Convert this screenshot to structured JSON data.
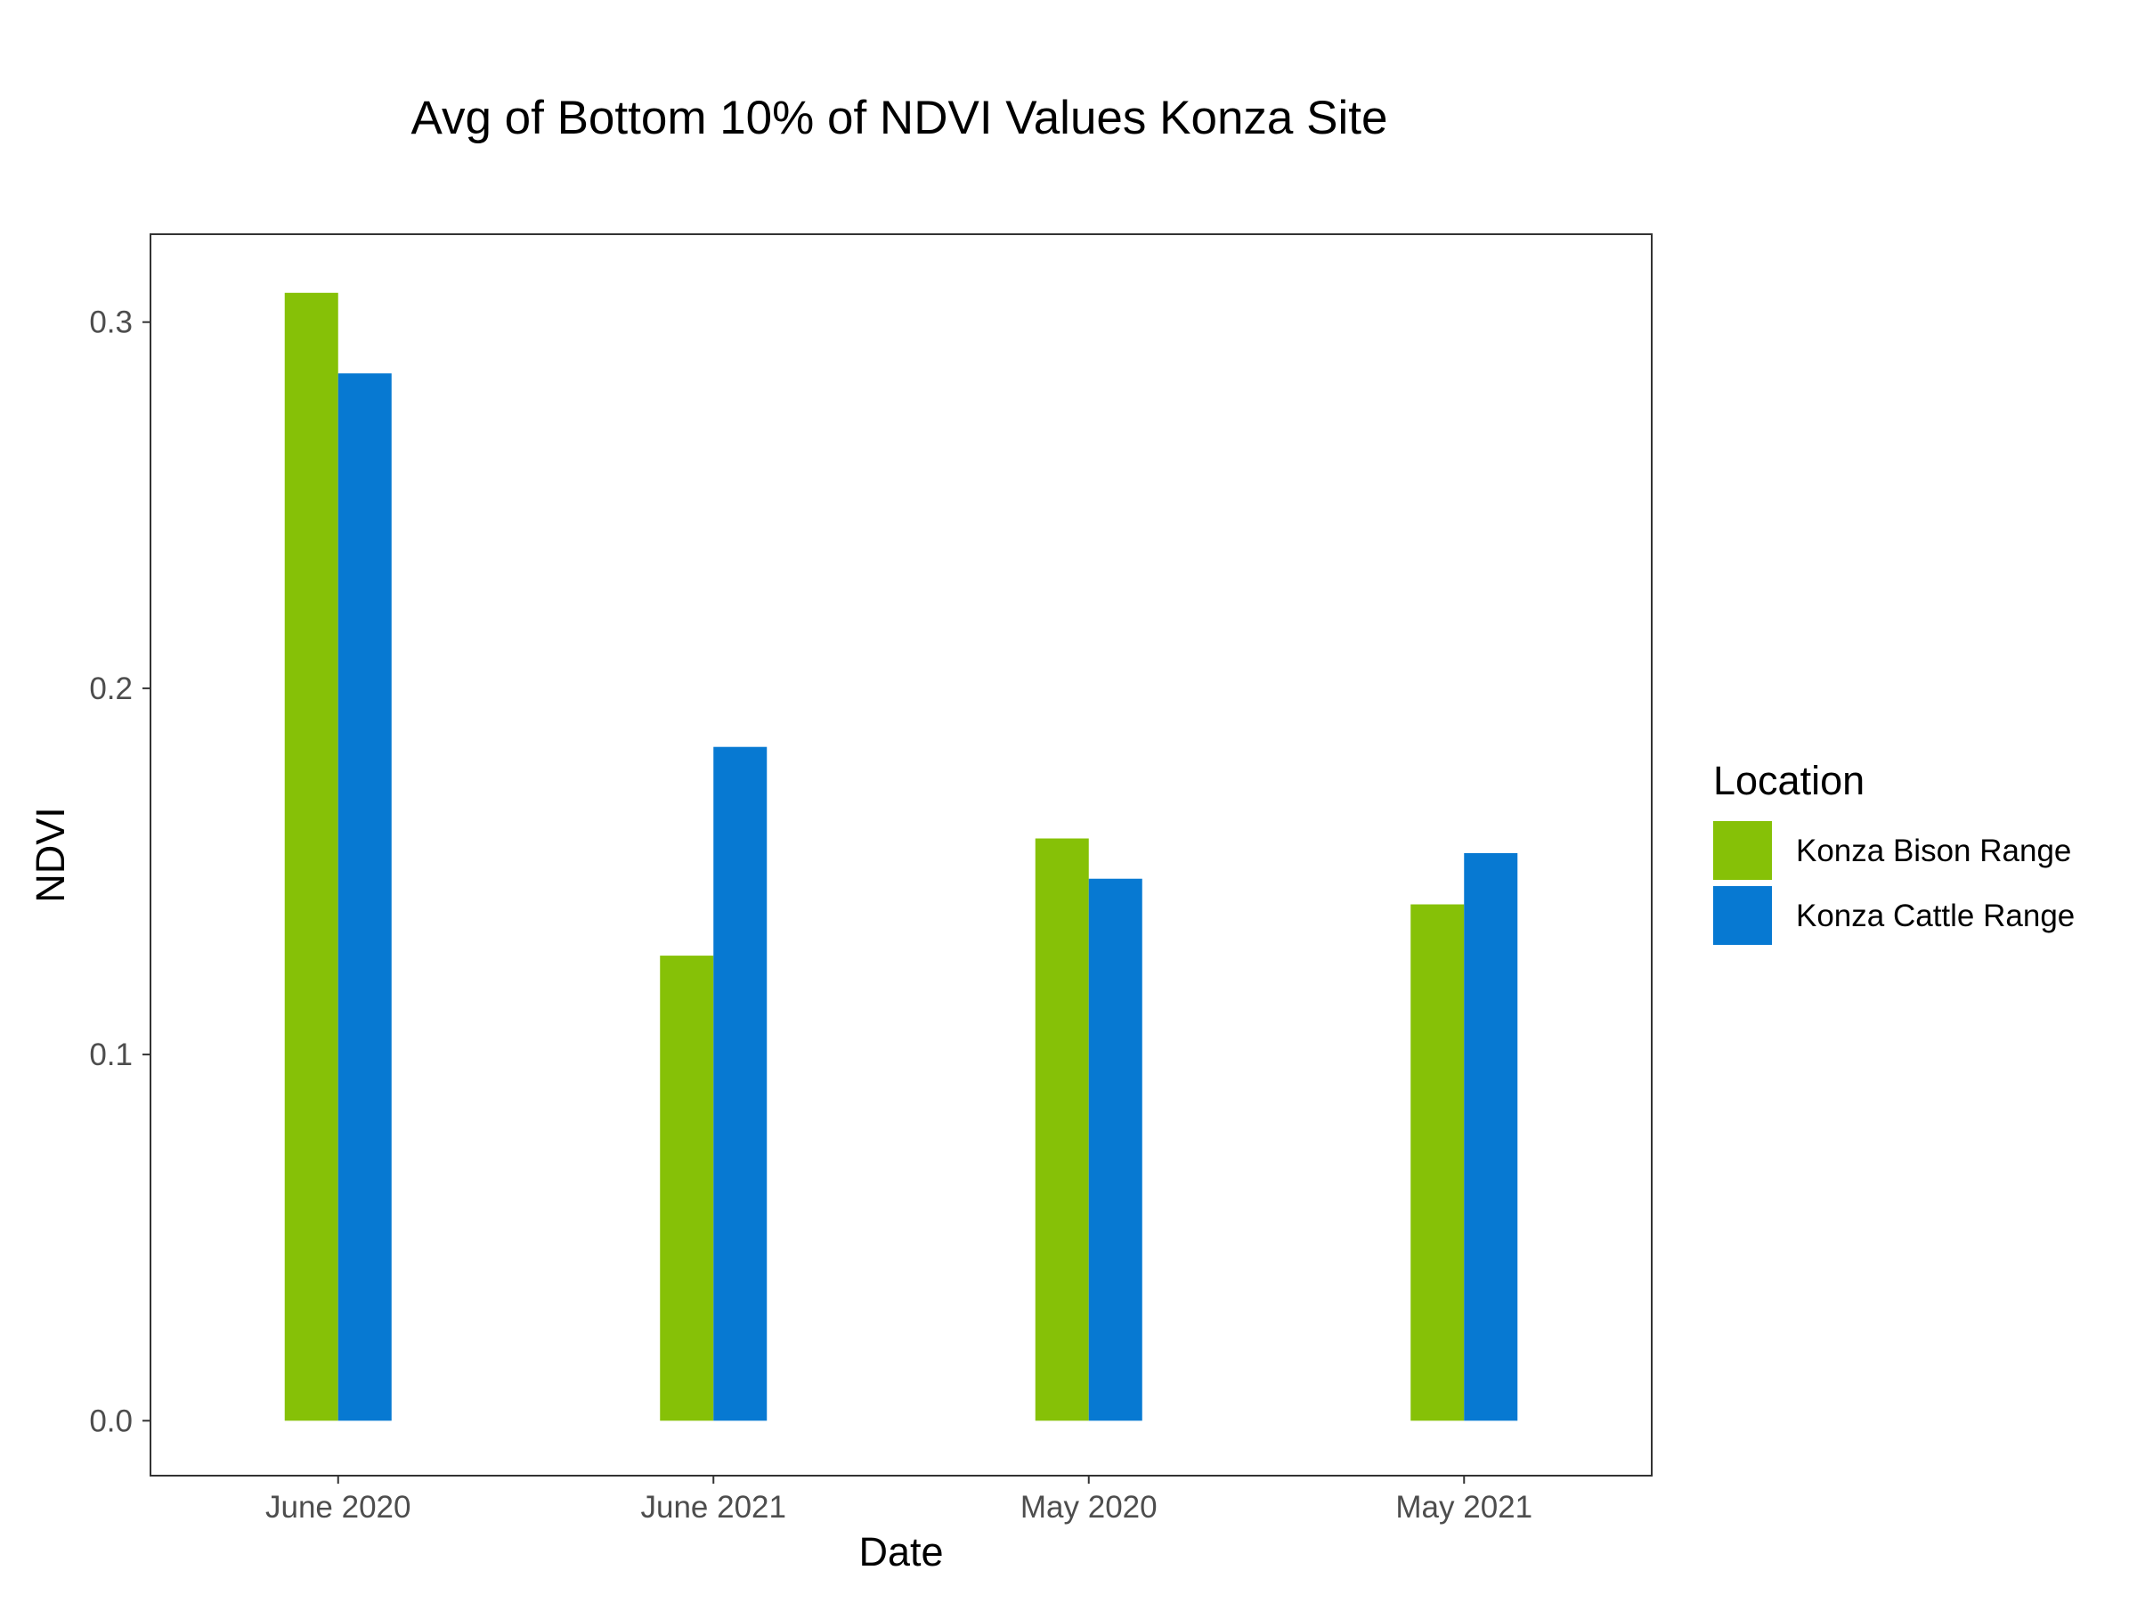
{
  "chart_data": {
    "type": "bar",
    "title": "Avg of Bottom 10% of NDVI Values Konza Site",
    "xlabel": "Date",
    "ylabel": "NDVI",
    "categories": [
      "June 2020",
      "June 2021",
      "May 2020",
      "May 2021"
    ],
    "series": [
      {
        "name": "Konza Bison Range",
        "color": "#86c107",
        "values": [
          0.308,
          0.127,
          0.159,
          0.141
        ]
      },
      {
        "name": "Konza Cattle Range",
        "color": "#0779d2",
        "values": [
          0.286,
          0.184,
          0.148,
          0.155
        ]
      }
    ],
    "ylim": [
      -0.015,
      0.324
    ],
    "yticks": [
      0.0,
      0.1,
      0.2,
      0.3
    ],
    "ytick_labels": [
      "0.0",
      "0.1",
      "0.2",
      "0.3"
    ],
    "grid": false,
    "legend": {
      "title": "Location",
      "placement": "right"
    }
  }
}
